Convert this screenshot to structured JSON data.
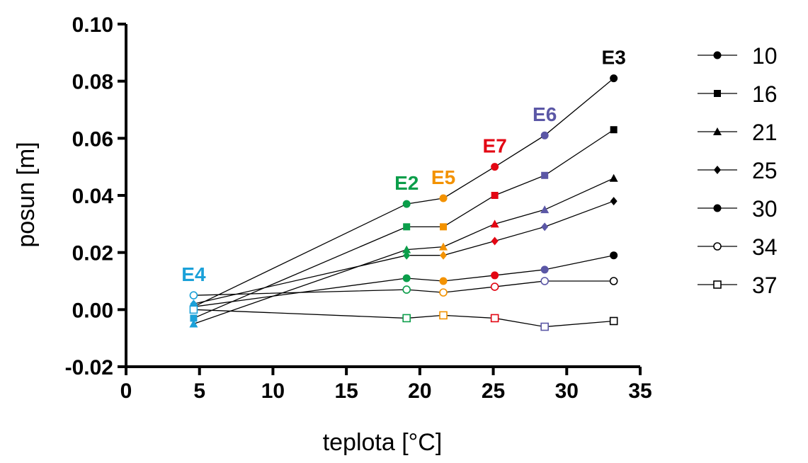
{
  "chart_data": {
    "type": "line",
    "xlabel": "teplota [°C]",
    "ylabel": "posun [m]",
    "xlim": [
      0,
      35
    ],
    "ylim": [
      -0.02,
      0.1
    ],
    "x_ticks": [
      0,
      5,
      10,
      15,
      20,
      25,
      30,
      35
    ],
    "x_tick_labels": [
      "0",
      "5",
      "10",
      "15",
      "20",
      "25",
      "30",
      "35"
    ],
    "y_ticks": [
      -0.02,
      0.0,
      0.02,
      0.04,
      0.06,
      0.08,
      0.1
    ],
    "y_tick_labels": [
      "-0.02",
      "0.00",
      "0.02",
      "0.04",
      "0.06",
      "0.08",
      "0.10"
    ],
    "grid": false,
    "legend_position": "right",
    "x": [
      4.6,
      19.1,
      21.6,
      25.1,
      28.5,
      33.2
    ],
    "point_colors": [
      "#1ba1d9",
      "#0b9e4a",
      "#f39200",
      "#e30613",
      "#5b57a6",
      "#000000"
    ],
    "series": [
      {
        "name": "10",
        "marker": "circle-filled",
        "values": [
          0.001,
          0.037,
          0.039,
          0.05,
          0.061,
          0.081
        ]
      },
      {
        "name": "16",
        "marker": "square-filled",
        "values": [
          -0.003,
          0.029,
          0.029,
          0.04,
          0.047,
          0.063
        ]
      },
      {
        "name": "21",
        "marker": "triangle-filled",
        "values": [
          -0.005,
          0.021,
          0.022,
          0.03,
          0.035,
          0.046
        ]
      },
      {
        "name": "25",
        "marker": "diamond-filled",
        "values": [
          0.002,
          0.019,
          0.019,
          0.024,
          0.029,
          0.038
        ]
      },
      {
        "name": "30",
        "marker": "circle-filled",
        "values": [
          0.001,
          0.011,
          0.01,
          0.012,
          0.014,
          0.019
        ]
      },
      {
        "name": "34",
        "marker": "circle-open",
        "values": [
          0.005,
          0.007,
          0.006,
          0.008,
          0.01,
          0.01
        ]
      },
      {
        "name": "37",
        "marker": "square-open",
        "values": [
          0.0,
          -0.003,
          -0.002,
          -0.003,
          -0.006,
          -0.004
        ]
      }
    ],
    "annotations": [
      {
        "text": "E4",
        "x": 4.6,
        "y": 0.01,
        "color": "#1ba1d9"
      },
      {
        "text": "E2",
        "x": 19.1,
        "y": 0.042,
        "color": "#0b9e4a"
      },
      {
        "text": "E5",
        "x": 21.6,
        "y": 0.044,
        "color": "#f39200"
      },
      {
        "text": "E7",
        "x": 25.1,
        "y": 0.055,
        "color": "#e30613"
      },
      {
        "text": "E6",
        "x": 28.5,
        "y": 0.066,
        "color": "#5b57a6"
      },
      {
        "text": "E3",
        "x": 33.2,
        "y": 0.086,
        "color": "#000000"
      }
    ]
  }
}
